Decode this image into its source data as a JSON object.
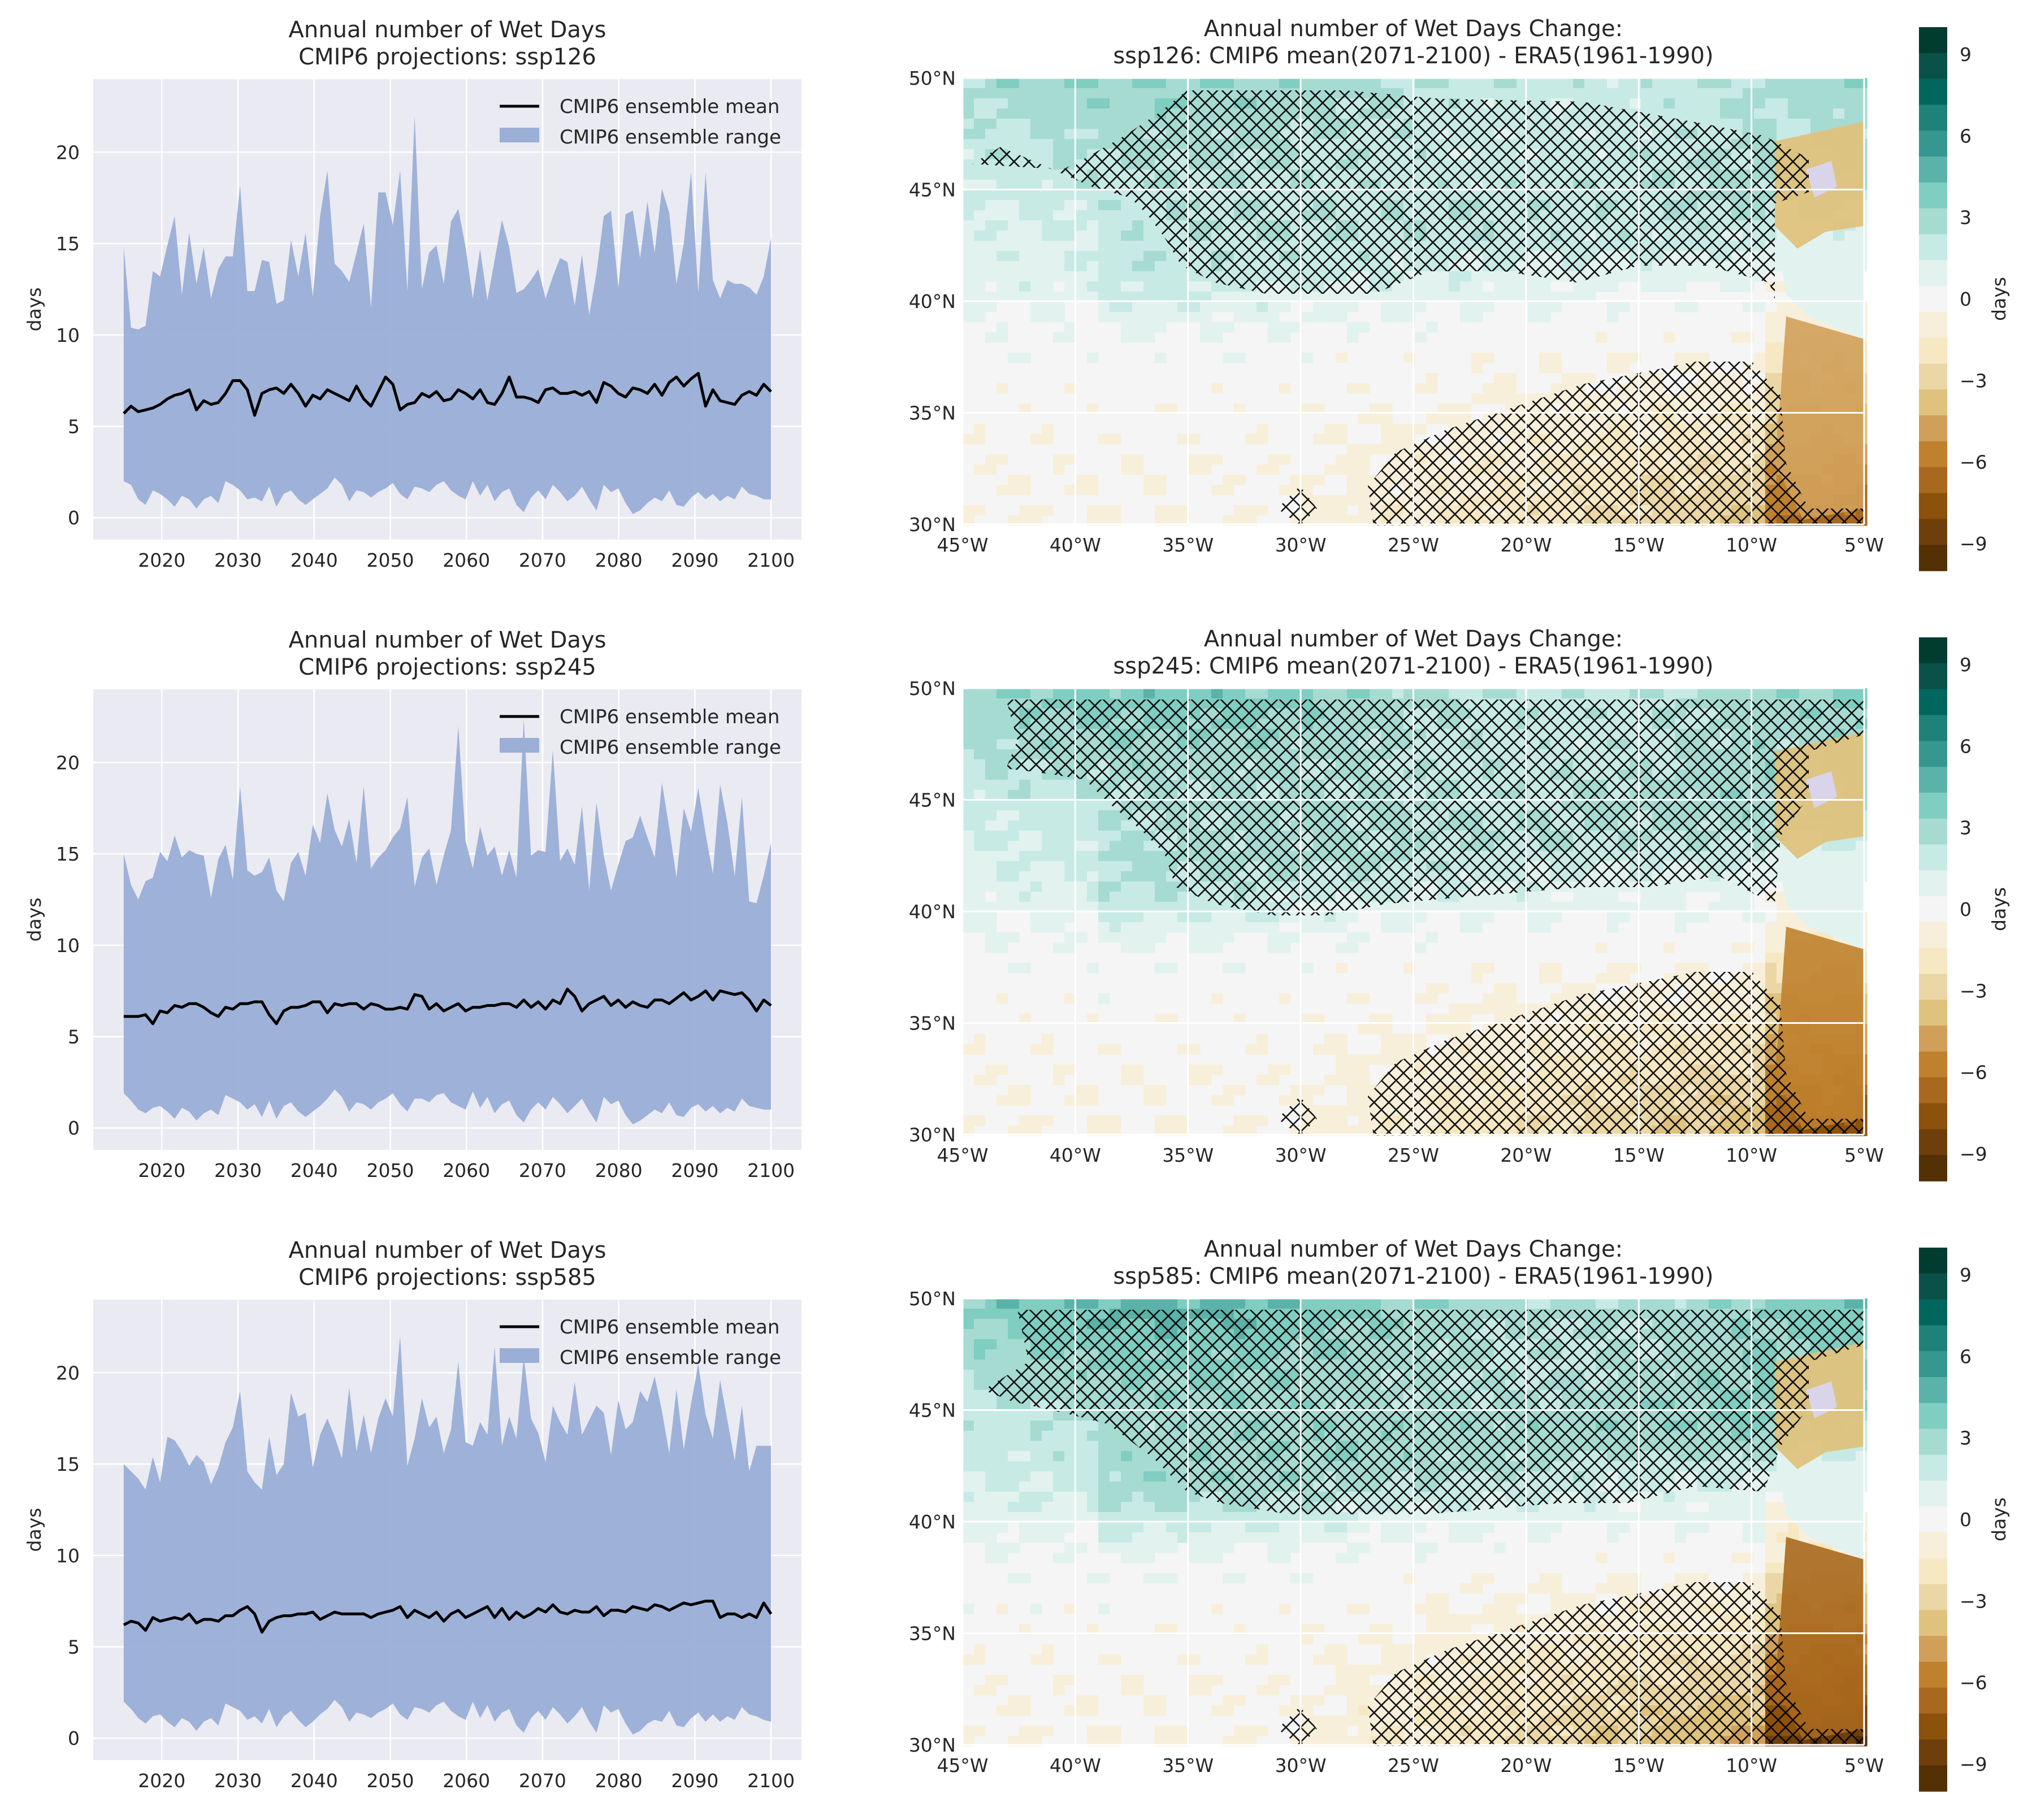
{
  "figure": {
    "rows": [
      {
        "scenario": "ssp126",
        "ts_title": [
          "Annual number of Wet Days",
          "CMIP6 projections: ssp126"
        ],
        "map_title": [
          "Annual number of Wet Days Change:",
          "ssp126: CMIP6 mean(2071-2100) - ERA5(1961-1990)"
        ]
      },
      {
        "scenario": "ssp245",
        "ts_title": [
          "Annual number of Wet Days",
          "CMIP6 projections: ssp245"
        ],
        "map_title": [
          "Annual number of Wet Days Change:",
          "ssp245: CMIP6 mean(2071-2100) - ERA5(1961-1990)"
        ]
      },
      {
        "scenario": "ssp585",
        "ts_title": [
          "Annual number of Wet Days",
          "CMIP6 projections: ssp585"
        ],
        "map_title": [
          "Annual number of Wet Days Change:",
          "ssp585: CMIP6 mean(2071-2100) - ERA5(1961-1990)"
        ]
      }
    ],
    "ts_ylabel": "days",
    "ts_xticks": [
      "2020",
      "2030",
      "2040",
      "2050",
      "2060",
      "2070",
      "2080",
      "2090",
      "2100"
    ],
    "ts_yticks": [
      "0",
      "5",
      "10",
      "15",
      "20"
    ],
    "legend": {
      "mean": "CMIP6 ensemble mean",
      "range": "CMIP6 ensemble range"
    },
    "map_xticks": [
      "45°W",
      "40°W",
      "35°W",
      "30°W",
      "25°W",
      "20°W",
      "15°W",
      "10°W",
      "5°W"
    ],
    "map_yticks": [
      "30°N",
      "35°N",
      "40°N",
      "45°N",
      "50°N"
    ],
    "cbar_ticks": [
      "9",
      "6",
      "3",
      "0",
      "−3",
      "−6",
      "−9"
    ],
    "cbar_label": "days"
  },
  "colors": {
    "axes_bg": "#eaeaf2",
    "range_fill": "#9aaed6",
    "mean_line": "#000000",
    "grid": "#ffffff",
    "colormap": [
      "#543005",
      "#6f3f0b",
      "#8c510a",
      "#a8681e",
      "#bf812d",
      "#d0a05a",
      "#dfc27d",
      "#ebd7a6",
      "#f6e8c3",
      "#f7efda",
      "#f5f5f5",
      "#e2f2ef",
      "#c7eae5",
      "#a6dbd2",
      "#80cdc1",
      "#5ab2a8",
      "#35978f",
      "#1f827a",
      "#01665e",
      "#0a5249",
      "#003c30"
    ]
  },
  "chart_data": [
    {
      "type": "area+line",
      "scenario": "ssp126",
      "title": "Annual number of Wet Days CMIP6 projections: ssp126",
      "ylabel": "days",
      "xlim": [
        2011,
        2104
      ],
      "ylim": [
        -1.2,
        24
      ],
      "x_start": 2015,
      "x_end": 2100,
      "mean": [
        5.7,
        6.1,
        5.8,
        5.9,
        6.0,
        6.2,
        6.5,
        6.7,
        6.8,
        7.0,
        5.9,
        6.4,
        6.2,
        6.3,
        6.8,
        7.5,
        7.5,
        7.0,
        5.6,
        6.8,
        7.0,
        7.1,
        6.8,
        7.3,
        6.8,
        6.1,
        6.7,
        6.5,
        7.0,
        6.8,
        6.6,
        6.4,
        7.2,
        6.5,
        6.1,
        6.9,
        7.7,
        7.3,
        5.9,
        6.2,
        6.3,
        6.8,
        6.6,
        6.9,
        6.4,
        6.5,
        7.0,
        6.8,
        6.5,
        7.0,
        6.3,
        6.2,
        6.8,
        7.7,
        6.6,
        6.6,
        6.5,
        6.3,
        7.0,
        7.1,
        6.8,
        6.8,
        6.9,
        6.7,
        6.9,
        6.3,
        7.4,
        7.2,
        6.8,
        6.6,
        7.1,
        7.0,
        6.8,
        7.3,
        6.7,
        7.4,
        7.7,
        7.2,
        7.6,
        7.9,
        6.1,
        7.0,
        6.4,
        6.3,
        6.2,
        6.7,
        6.9,
        6.7,
        7.3,
        6.9
      ],
      "upper": [
        14.8,
        10.4,
        10.3,
        10.5,
        13.5,
        13.2,
        14.9,
        16.5,
        12.2,
        15.6,
        12.8,
        14.8,
        12.0,
        13.6,
        14.3,
        14.3,
        18.2,
        12.4,
        12.4,
        14.1,
        14.0,
        11.7,
        11.9,
        15.2,
        13.2,
        15.6,
        12.1,
        16.5,
        19.0,
        13.9,
        13.5,
        12.9,
        14.5,
        16.1,
        11.5,
        17.8,
        17.8,
        16.0,
        19.0,
        12.4,
        22.0,
        12.5,
        14.5,
        14.9,
        12.8,
        16.2,
        16.9,
        14.8,
        12.0,
        14.7,
        11.9,
        14.1,
        16.3,
        14.8,
        12.3,
        12.5,
        13.0,
        13.6,
        12.0,
        13.2,
        14.2,
        14.0,
        11.6,
        14.4,
        11.1,
        13.4,
        16.5,
        16.8,
        12.6,
        16.6,
        16.8,
        14.2,
        17.3,
        14.5,
        18.0,
        16.7,
        12.8,
        15.0,
        18.9,
        12.3,
        18.9,
        13.0,
        12.0,
        13.0,
        12.8,
        12.8,
        12.6,
        12.2,
        13.2,
        15.3
      ],
      "lower": [
        2.0,
        1.8,
        1.0,
        0.7,
        1.5,
        1.3,
        1.0,
        0.6,
        1.2,
        1.0,
        0.5,
        1.0,
        1.2,
        0.8,
        2.0,
        1.8,
        1.5,
        1.0,
        1.1,
        0.9,
        1.7,
        0.6,
        1.3,
        1.5,
        1.0,
        0.7,
        1.0,
        1.3,
        1.6,
        2.2,
        1.8,
        0.9,
        1.5,
        1.4,
        1.1,
        1.4,
        1.6,
        1.9,
        1.3,
        1.0,
        1.7,
        1.6,
        1.4,
        1.8,
        2.0,
        1.5,
        1.2,
        1.0,
        2.0,
        1.2,
        1.8,
        0.9,
        1.4,
        1.6,
        0.7,
        0.3,
        1.1,
        1.5,
        1.0,
        1.8,
        1.4,
        0.9,
        1.2,
        1.7,
        1.0,
        0.4,
        1.8,
        1.4,
        1.6,
        0.8,
        0.2,
        0.4,
        0.8,
        1.1,
        0.9,
        1.5,
        0.7,
        0.6,
        1.1,
        1.4,
        1.0,
        1.3,
        0.9,
        1.2,
        1.0,
        1.7,
        1.3,
        1.2,
        1.0,
        1.0
      ]
    },
    {
      "type": "area+line",
      "scenario": "ssp245",
      "title": "Annual number of Wet Days CMIP6 projections: ssp245",
      "ylabel": "days",
      "xlim": [
        2011,
        2104
      ],
      "ylim": [
        -1.2,
        24
      ],
      "x_start": 2015,
      "x_end": 2100,
      "mean": [
        6.1,
        6.1,
        6.1,
        6.2,
        5.7,
        6.4,
        6.3,
        6.7,
        6.6,
        6.8,
        6.8,
        6.6,
        6.3,
        6.1,
        6.6,
        6.5,
        6.8,
        6.8,
        6.9,
        6.9,
        6.2,
        5.7,
        6.4,
        6.6,
        6.6,
        6.7,
        6.9,
        6.9,
        6.3,
        6.8,
        6.7,
        6.8,
        6.8,
        6.5,
        6.8,
        6.7,
        6.5,
        6.5,
        6.6,
        6.5,
        7.3,
        7.2,
        6.5,
        6.8,
        6.4,
        6.6,
        6.8,
        6.4,
        6.6,
        6.6,
        6.7,
        6.7,
        6.8,
        6.8,
        6.6,
        7.0,
        6.6,
        6.9,
        6.5,
        7.0,
        6.8,
        7.6,
        7.2,
        6.4,
        6.8,
        7.0,
        7.2,
        6.7,
        7.0,
        6.6,
        6.9,
        6.7,
        6.6,
        7.0,
        7.0,
        6.8,
        7.1,
        7.4,
        7.0,
        7.2,
        7.5,
        7.0,
        7.5,
        7.4,
        7.3,
        7.4,
        7.0,
        6.4,
        7.0,
        6.7
      ],
      "upper": [
        15.0,
        13.3,
        12.5,
        13.5,
        13.7,
        15.1,
        14.6,
        16.0,
        14.8,
        15.2,
        15.0,
        14.9,
        12.6,
        14.7,
        15.5,
        13.6,
        18.7,
        14.1,
        13.8,
        14.0,
        14.8,
        13.0,
        12.4,
        14.5,
        15.1,
        13.8,
        16.6,
        15.6,
        18.3,
        16.3,
        15.4,
        16.9,
        14.5,
        18.7,
        14.2,
        14.8,
        15.2,
        15.9,
        16.4,
        18.1,
        13.2,
        14.8,
        15.3,
        13.3,
        14.9,
        16.3,
        22.0,
        15.7,
        14.2,
        16.5,
        14.9,
        15.4,
        13.8,
        15.2,
        13.7,
        22.4,
        14.9,
        15.2,
        15.1,
        20.7,
        14.6,
        15.3,
        14.4,
        17.6,
        13.0,
        17.8,
        14.9,
        13.0,
        14.4,
        15.7,
        15.9,
        17.1,
        15.9,
        14.8,
        18.9,
        16.4,
        13.7,
        17.5,
        16.2,
        18.6,
        16.1,
        13.9,
        18.8,
        16.7,
        13.8,
        18.1,
        12.4,
        12.3,
        13.8,
        15.6
      ],
      "lower": [
        1.9,
        1.5,
        1.0,
        0.8,
        1.1,
        1.2,
        0.9,
        0.5,
        1.1,
        0.9,
        0.4,
        0.8,
        1.0,
        0.7,
        1.8,
        1.6,
        1.4,
        1.0,
        1.3,
        0.6,
        1.5,
        0.5,
        1.2,
        1.4,
        0.9,
        0.6,
        0.9,
        1.2,
        1.6,
        2.1,
        1.7,
        0.9,
        1.4,
        1.3,
        1.0,
        1.4,
        1.6,
        1.9,
        1.3,
        0.9,
        1.6,
        1.6,
        1.4,
        1.8,
        1.9,
        1.4,
        1.2,
        1.0,
        2.0,
        1.1,
        1.7,
        0.8,
        1.3,
        1.5,
        0.7,
        0.3,
        1.0,
        1.4,
        1.0,
        1.7,
        1.3,
        0.8,
        1.2,
        1.6,
        0.9,
        0.3,
        1.7,
        1.3,
        1.5,
        0.7,
        0.2,
        0.4,
        0.7,
        1.0,
        0.8,
        1.4,
        0.7,
        0.6,
        1.1,
        1.3,
        0.9,
        1.2,
        0.8,
        1.1,
        0.9,
        1.6,
        1.2,
        1.1,
        1.0,
        1.0
      ]
    },
    {
      "type": "area+line",
      "scenario": "ssp585",
      "title": "Annual number of Wet Days CMIP6 projections: ssp585",
      "ylabel": "days",
      "xlim": [
        2011,
        2104
      ],
      "ylim": [
        -1.2,
        24
      ],
      "x_start": 2015,
      "x_end": 2100,
      "mean": [
        6.2,
        6.4,
        6.3,
        5.9,
        6.6,
        6.4,
        6.5,
        6.6,
        6.5,
        6.8,
        6.3,
        6.5,
        6.5,
        6.4,
        6.7,
        6.7,
        7.0,
        7.2,
        6.8,
        5.8,
        6.4,
        6.6,
        6.7,
        6.7,
        6.8,
        6.8,
        6.9,
        6.5,
        6.7,
        6.9,
        6.8,
        6.8,
        6.8,
        6.8,
        6.6,
        6.8,
        6.9,
        7.0,
        7.2,
        6.6,
        7.0,
        6.8,
        6.6,
        6.9,
        6.4,
        6.8,
        7.0,
        6.6,
        6.8,
        7.0,
        7.2,
        6.6,
        7.1,
        6.5,
        6.9,
        6.6,
        6.8,
        7.1,
        6.9,
        7.3,
        6.9,
        6.8,
        7.0,
        6.9,
        6.9,
        7.2,
        6.7,
        7.0,
        7.0,
        6.9,
        7.2,
        7.1,
        7.0,
        7.3,
        7.2,
        7.0,
        7.2,
        7.4,
        7.3,
        7.4,
        7.5,
        7.5,
        6.6,
        6.8,
        6.8,
        6.6,
        6.8,
        6.6,
        7.4,
        6.8
      ],
      "upper": [
        15.0,
        14.6,
        14.2,
        13.6,
        15.4,
        14.0,
        16.5,
        16.3,
        15.7,
        14.9,
        15.5,
        15.1,
        13.9,
        14.8,
        16.2,
        17.0,
        19.0,
        14.6,
        14.0,
        13.6,
        16.5,
        14.4,
        15.0,
        18.9,
        17.6,
        17.8,
        14.8,
        16.6,
        17.5,
        16.5,
        15.3,
        19.2,
        15.7,
        17.7,
        15.6,
        17.5,
        18.6,
        17.6,
        22.0,
        14.9,
        16.4,
        18.6,
        17.0,
        17.6,
        15.6,
        16.9,
        20.6,
        16.2,
        16.0,
        17.3,
        16.6,
        21.4,
        16.0,
        17.6,
        16.4,
        20.9,
        17.5,
        16.7,
        15.1,
        18.2,
        17.3,
        16.6,
        19.5,
        16.6,
        17.4,
        18.2,
        17.8,
        15.5,
        18.5,
        16.9,
        17.3,
        19.0,
        18.4,
        19.8,
        17.9,
        15.6,
        19.1,
        15.8,
        18.3,
        20.5,
        17.7,
        16.4,
        19.6,
        17.4,
        15.2,
        18.2,
        14.6,
        16.0,
        16.0,
        16.0
      ],
      "lower": [
        2.0,
        1.6,
        1.1,
        0.8,
        1.2,
        1.3,
        0.9,
        0.6,
        1.1,
        0.9,
        0.4,
        0.9,
        1.1,
        0.7,
        1.9,
        1.7,
        1.5,
        1.0,
        1.2,
        0.8,
        1.6,
        0.6,
        1.2,
        1.5,
        1.0,
        0.6,
        0.9,
        1.3,
        1.6,
        2.1,
        1.7,
        0.9,
        1.4,
        1.3,
        1.1,
        1.4,
        1.6,
        1.9,
        1.3,
        1.0,
        1.7,
        1.6,
        1.4,
        1.8,
        2.0,
        1.5,
        1.2,
        1.0,
        2.0,
        1.1,
        1.8,
        0.9,
        1.4,
        1.6,
        0.7,
        0.3,
        1.1,
        1.5,
        1.0,
        1.7,
        1.3,
        0.8,
        1.2,
        1.7,
        0.9,
        0.3,
        1.8,
        1.4,
        1.6,
        0.8,
        0.2,
        0.4,
        0.8,
        1.0,
        0.9,
        1.5,
        0.7,
        0.6,
        1.1,
        1.4,
        0.9,
        1.3,
        0.9,
        1.2,
        1.0,
        1.7,
        1.3,
        1.2,
        1.0,
        0.9
      ]
    },
    {
      "type": "heatmap",
      "scenario": "ssp126",
      "title": "Annual number of Wet Days Change: ssp126: CMIP6 mean(2071-2100) - ERA5(1961-1990)",
      "x_range": [
        -45,
        -5
      ],
      "y_range": [
        30,
        50
      ],
      "clim": [
        -10,
        10
      ],
      "colorbar_label": "days",
      "hatching": "significant change"
    },
    {
      "type": "heatmap",
      "scenario": "ssp245",
      "title": "Annual number of Wet Days Change: ssp245: CMIP6 mean(2071-2100) - ERA5(1961-1990)",
      "x_range": [
        -45,
        -5
      ],
      "y_range": [
        30,
        50
      ],
      "clim": [
        -10,
        10
      ],
      "colorbar_label": "days",
      "hatching": "significant change"
    },
    {
      "type": "heatmap",
      "scenario": "ssp585",
      "title": "Annual number of Wet Days Change: ssp585: CMIP6 mean(2071-2100) - ERA5(1961-1990)",
      "x_range": [
        -45,
        -5
      ],
      "y_range": [
        30,
        50
      ],
      "clim": [
        -10,
        10
      ],
      "colorbar_label": "days",
      "hatching": "significant change"
    }
  ]
}
